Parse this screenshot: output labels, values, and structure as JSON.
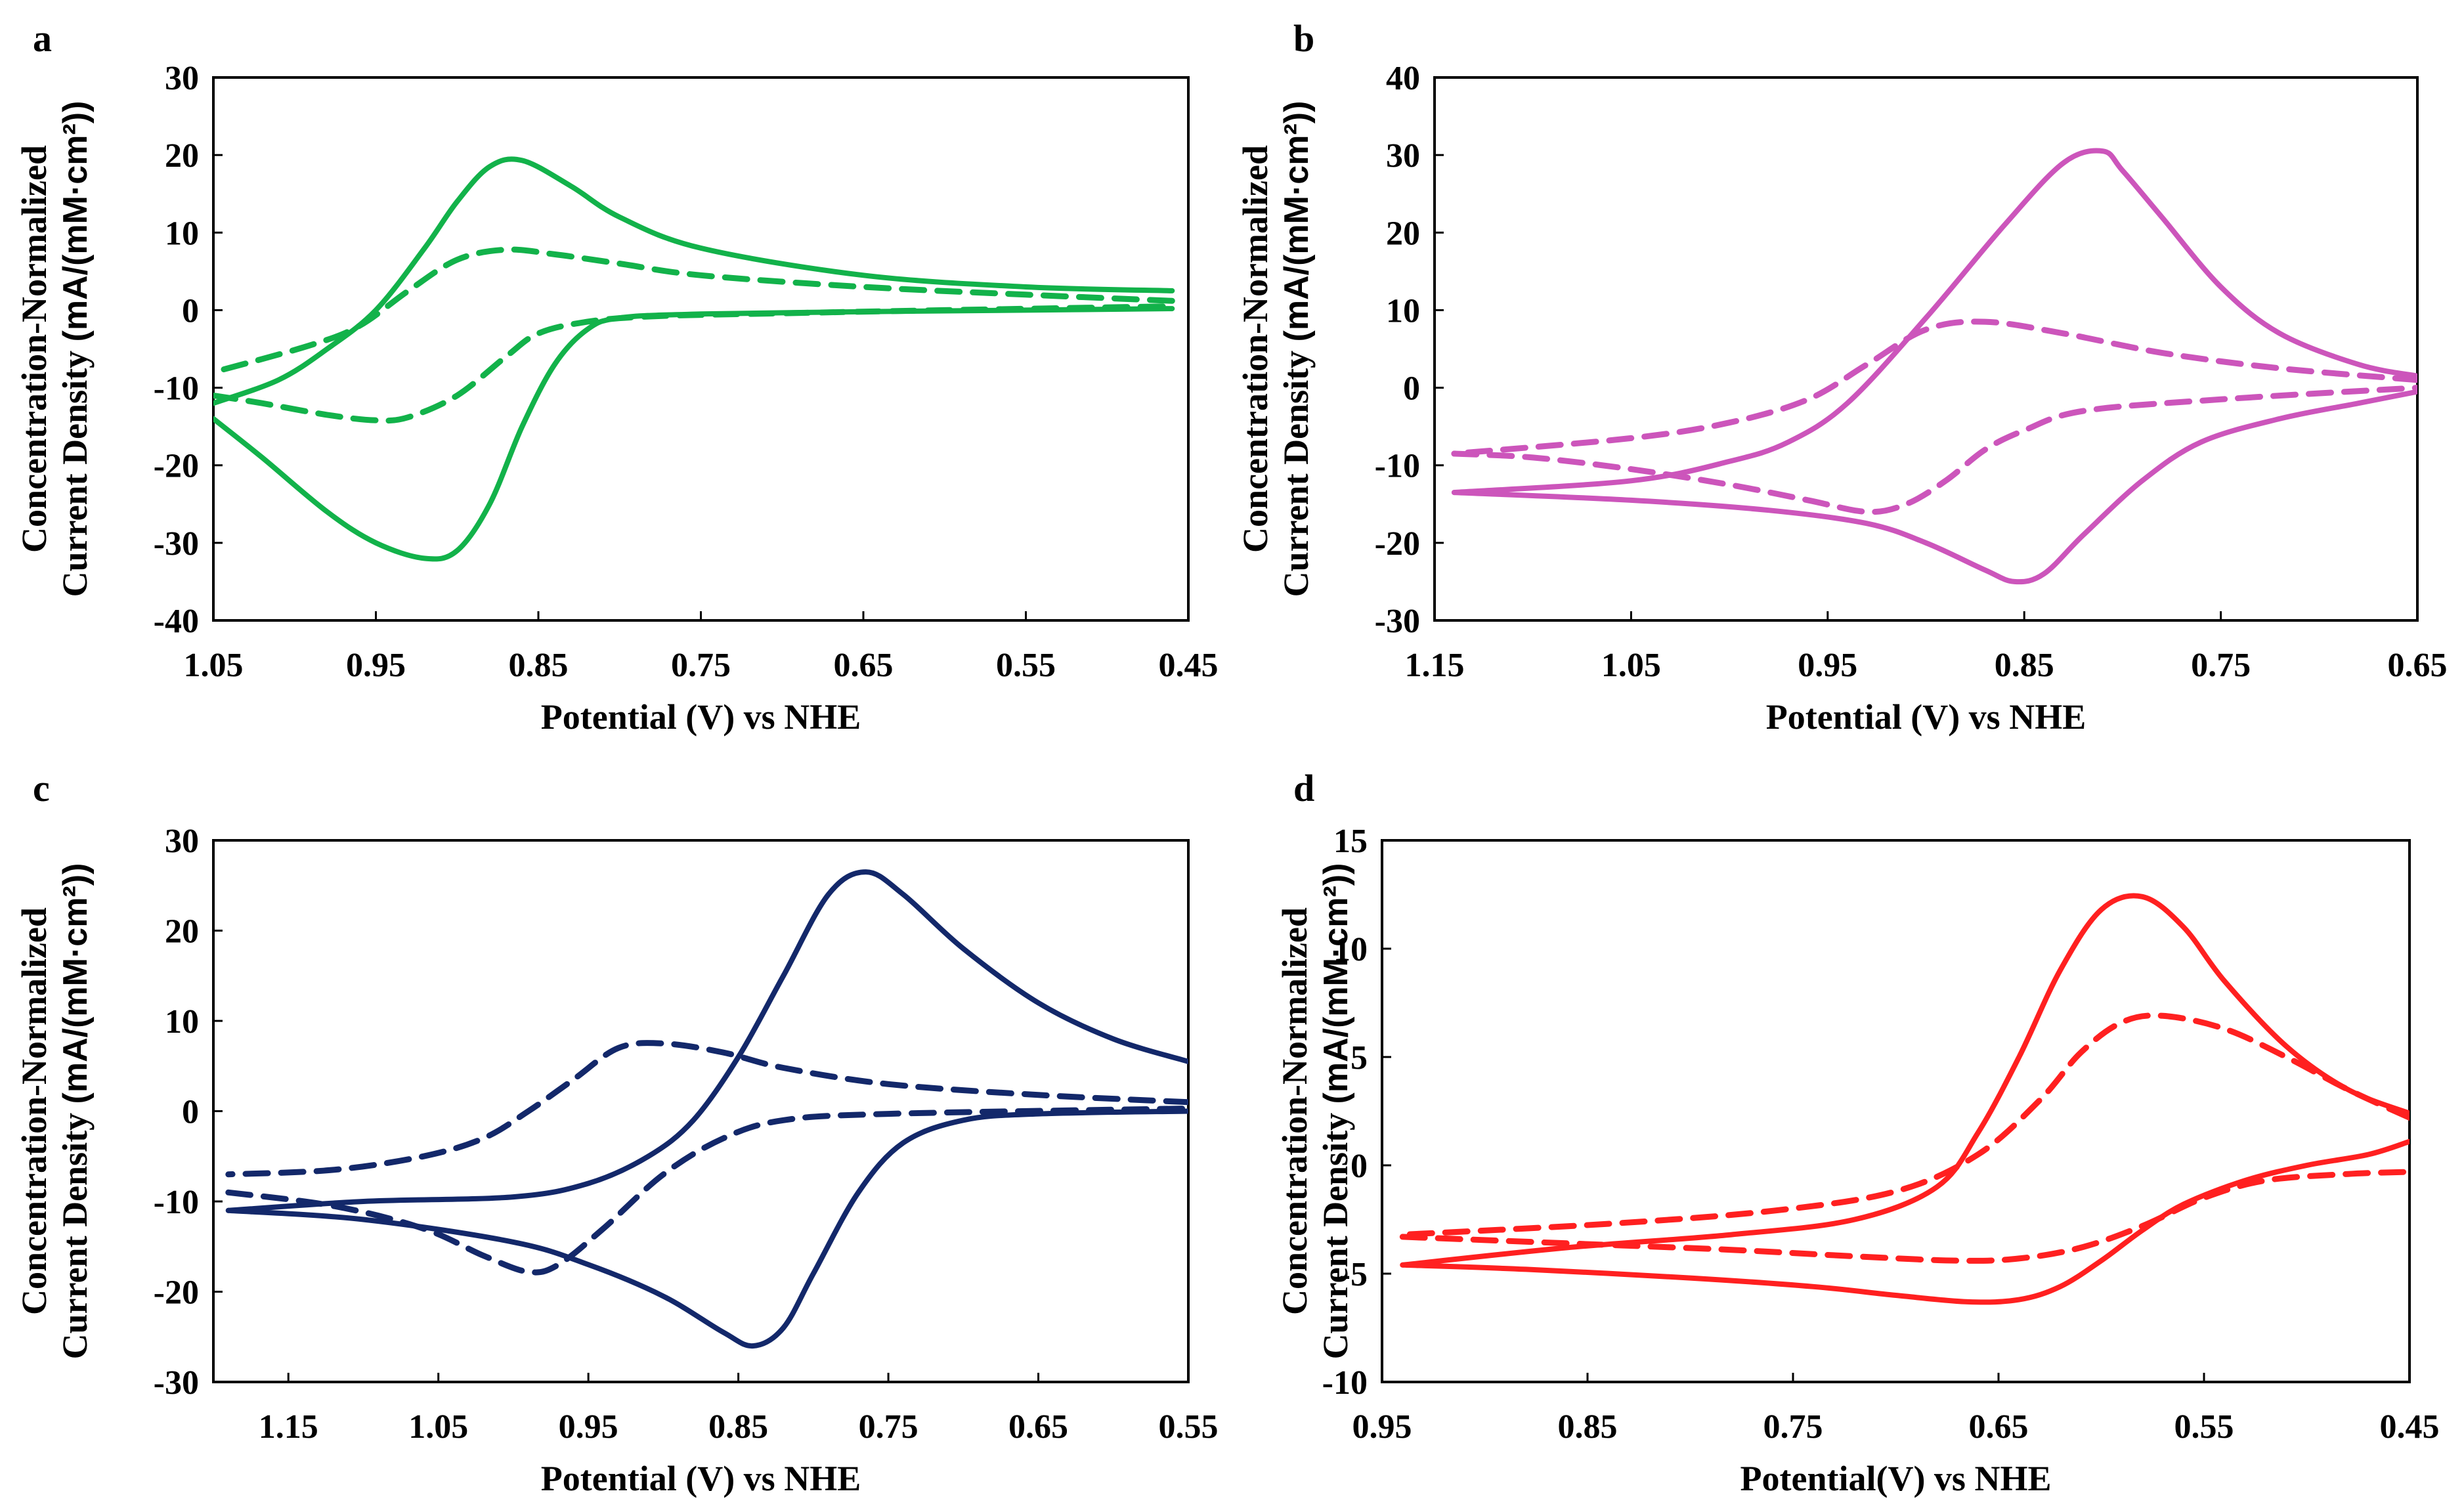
{
  "chart_data": [
    {
      "panel": "a",
      "type": "line",
      "color": "#12b24a",
      "title": "",
      "xlabel": "Potential (V) vs NHE",
      "ylabel_line1": "Concentration-Normalized",
      "ylabel_line2_a": "Current Density ",
      "ylabel_line2_b": "(mA/(mM·cm²))",
      "xlim": [
        1.05,
        0.45
      ],
      "ylim": [
        -40,
        30
      ],
      "xticks": [
        "1.05",
        "0.95",
        "0.85",
        "0.75",
        "0.65",
        "0.55",
        "0.45"
      ],
      "yticks": [
        "-40",
        "-30",
        "-20",
        "-10",
        "0",
        "10",
        "20",
        "30"
      ],
      "series": [
        {
          "name": "solid-forward",
          "style": "solid",
          "points": [
            [
              1.05,
              -14
            ],
            [
              1.02,
              -19
            ],
            [
              0.98,
              -26
            ],
            [
              0.95,
              -30
            ],
            [
              0.92,
              -32
            ],
            [
              0.9,
              -31
            ],
            [
              0.88,
              -25
            ],
            [
              0.86,
              -15
            ],
            [
              0.84,
              -7
            ],
            [
              0.82,
              -2.5
            ],
            [
              0.8,
              -1
            ],
            [
              0.75,
              -0.5
            ],
            [
              0.65,
              -0.2
            ],
            [
              0.55,
              0
            ],
            [
              0.46,
              0.2
            ]
          ]
        },
        {
          "name": "solid-reverse",
          "style": "solid",
          "points": [
            [
              0.46,
              2.5
            ],
            [
              0.55,
              3
            ],
            [
              0.65,
              4.5
            ],
            [
              0.75,
              8
            ],
            [
              0.8,
              12
            ],
            [
              0.83,
              16
            ],
            [
              0.86,
              19.3
            ],
            [
              0.88,
              18.5
            ],
            [
              0.9,
              14
            ],
            [
              0.92,
              8
            ],
            [
              0.95,
              0
            ],
            [
              0.98,
              -5
            ],
            [
              1.01,
              -9
            ],
            [
              1.05,
              -12
            ]
          ]
        },
        {
          "name": "dashed-forward",
          "style": "dashed",
          "points": [
            [
              1.05,
              -11
            ],
            [
              1.02,
              -12
            ],
            [
              0.98,
              -13.5
            ],
            [
              0.95,
              -14.2
            ],
            [
              0.93,
              -13.8
            ],
            [
              0.9,
              -11
            ],
            [
              0.87,
              -6
            ],
            [
              0.85,
              -3
            ],
            [
              0.82,
              -1.5
            ],
            [
              0.78,
              -0.8
            ],
            [
              0.7,
              -0.4
            ],
            [
              0.6,
              0
            ],
            [
              0.46,
              0.5
            ]
          ]
        },
        {
          "name": "dashed-reverse",
          "style": "dashed",
          "points": [
            [
              0.46,
              1.2
            ],
            [
              0.55,
              2
            ],
            [
              0.65,
              3
            ],
            [
              0.75,
              4.5
            ],
            [
              0.8,
              6
            ],
            [
              0.84,
              7.2
            ],
            [
              0.87,
              7.8
            ],
            [
              0.9,
              6.5
            ],
            [
              0.93,
              2.5
            ],
            [
              0.96,
              -2
            ],
            [
              0.99,
              -4.5
            ],
            [
              1.05,
              -8
            ]
          ]
        }
      ]
    },
    {
      "panel": "b",
      "type": "line",
      "color": "#cc55bb",
      "title": "",
      "xlabel": "Potential (V) vs NHE",
      "ylabel_line1": "Concentration-Normalized",
      "ylabel_line2_a": "Current Density ",
      "ylabel_line2_b": "(mA/(mM·cm²))",
      "xlim": [
        1.15,
        0.65
      ],
      "ylim": [
        -30,
        40
      ],
      "xticks": [
        "1.15",
        "1.05",
        "0.95",
        "0.85",
        "0.75",
        "0.65"
      ],
      "yticks": [
        "-30",
        "-20",
        "-10",
        "0",
        "10",
        "20",
        "30",
        "40"
      ],
      "series": [
        {
          "name": "solid-forward",
          "style": "solid",
          "points": [
            [
              1.14,
              -13.5
            ],
            [
              1.05,
              -14.5
            ],
            [
              0.98,
              -15.8
            ],
            [
              0.93,
              -17.5
            ],
            [
              0.9,
              -20
            ],
            [
              0.87,
              -23.5
            ],
            [
              0.855,
              -25
            ],
            [
              0.84,
              -24
            ],
            [
              0.82,
              -19
            ],
            [
              0.79,
              -12
            ],
            [
              0.76,
              -7
            ],
            [
              0.72,
              -4
            ],
            [
              0.68,
              -2
            ],
            [
              0.65,
              -0.5
            ]
          ]
        },
        {
          "name": "solid-reverse",
          "style": "solid",
          "points": [
            [
              0.65,
              1.5
            ],
            [
              0.68,
              3
            ],
            [
              0.72,
              7
            ],
            [
              0.75,
              13
            ],
            [
              0.78,
              22
            ],
            [
              0.8,
              28
            ],
            [
              0.81,
              30.5
            ],
            [
              0.83,
              29
            ],
            [
              0.86,
              21
            ],
            [
              0.9,
              9
            ],
            [
              0.94,
              -2
            ],
            [
              0.97,
              -7
            ],
            [
              1.0,
              -9.5
            ],
            [
              1.05,
              -12
            ],
            [
              1.14,
              -13.5
            ]
          ]
        },
        {
          "name": "dashed-forward",
          "style": "dashed",
          "points": [
            [
              1.14,
              -8.5
            ],
            [
              1.1,
              -9
            ],
            [
              1.05,
              -10.5
            ],
            [
              1.0,
              -12.5
            ],
            [
              0.96,
              -14.5
            ],
            [
              0.93,
              -16
            ],
            [
              0.91,
              -15
            ],
            [
              0.89,
              -12
            ],
            [
              0.87,
              -8
            ],
            [
              0.85,
              -5.5
            ],
            [
              0.82,
              -3
            ],
            [
              0.75,
              -1.5
            ],
            [
              0.65,
              0
            ]
          ]
        },
        {
          "name": "dashed-reverse",
          "style": "dashed",
          "points": [
            [
              0.65,
              1
            ],
            [
              0.72,
              2.5
            ],
            [
              0.78,
              4.5
            ],
            [
              0.83,
              7
            ],
            [
              0.87,
              8.5
            ],
            [
              0.9,
              7.5
            ],
            [
              0.93,
              3
            ],
            [
              0.96,
              -1.5
            ],
            [
              1.0,
              -4.5
            ],
            [
              1.05,
              -6.5
            ],
            [
              1.14,
              -8.5
            ]
          ]
        }
      ]
    },
    {
      "panel": "c",
      "type": "line",
      "color": "#13286a",
      "title": "",
      "xlabel": "Potential (V) vs NHE",
      "ylabel_line1": "Concentration-Normalized",
      "ylabel_line2_a": "Current Density ",
      "ylabel_line2_b": "(mA/(mM·cm²))",
      "xlim": [
        1.2,
        0.55
      ],
      "ylim": [
        -30,
        30
      ],
      "xticks": [
        "1.15",
        "1.05",
        "0.95",
        "0.85",
        "0.75",
        "0.65",
        "0.55"
      ],
      "yticks": [
        "-30",
        "-20",
        "-10",
        "0",
        "10",
        "20",
        "30"
      ],
      "series": [
        {
          "name": "solid-forward",
          "style": "solid",
          "points": [
            [
              1.19,
              -11
            ],
            [
              1.1,
              -12
            ],
            [
              1.0,
              -14.5
            ],
            [
              0.95,
              -17
            ],
            [
              0.9,
              -20.5
            ],
            [
              0.86,
              -24.5
            ],
            [
              0.84,
              -26
            ],
            [
              0.82,
              -24
            ],
            [
              0.8,
              -18
            ],
            [
              0.77,
              -9
            ],
            [
              0.74,
              -3.5
            ],
            [
              0.7,
              -1
            ],
            [
              0.65,
              -0.3
            ],
            [
              0.55,
              0
            ]
          ]
        },
        {
          "name": "solid-reverse",
          "style": "solid",
          "points": [
            [
              0.55,
              5.5
            ],
            [
              0.6,
              8
            ],
            [
              0.65,
              12
            ],
            [
              0.7,
              18
            ],
            [
              0.74,
              24
            ],
            [
              0.765,
              26.5
            ],
            [
              0.79,
              24
            ],
            [
              0.82,
              15
            ],
            [
              0.85,
              6
            ],
            [
              0.88,
              -1
            ],
            [
              0.91,
              -5
            ],
            [
              0.95,
              -8
            ],
            [
              1.0,
              -9.5
            ],
            [
              1.1,
              -10
            ],
            [
              1.19,
              -11
            ]
          ]
        },
        {
          "name": "dashed-forward",
          "style": "dashed",
          "points": [
            [
              1.19,
              -9
            ],
            [
              1.12,
              -10.5
            ],
            [
              1.06,
              -13
            ],
            [
              1.02,
              -16
            ],
            [
              0.99,
              -17.8
            ],
            [
              0.97,
              -17
            ],
            [
              0.94,
              -13
            ],
            [
              0.9,
              -7
            ],
            [
              0.86,
              -3
            ],
            [
              0.82,
              -1
            ],
            [
              0.75,
              -0.3
            ],
            [
              0.55,
              0.3
            ]
          ]
        },
        {
          "name": "dashed-reverse",
          "style": "dashed",
          "points": [
            [
              0.55,
              1
            ],
            [
              0.65,
              1.8
            ],
            [
              0.75,
              3
            ],
            [
              0.82,
              4.8
            ],
            [
              0.86,
              6.5
            ],
            [
              0.9,
              7.5
            ],
            [
              0.93,
              7
            ],
            [
              0.96,
              3.5
            ],
            [
              0.99,
              0
            ],
            [
              1.02,
              -3
            ],
            [
              1.06,
              -5
            ],
            [
              1.12,
              -6.5
            ],
            [
              1.19,
              -7
            ]
          ]
        }
      ]
    },
    {
      "panel": "d",
      "type": "line",
      "color": "#ff2020",
      "title": "",
      "xlabel": "Potential(V) vs NHE",
      "ylabel_line1": "Concentration-Normalized",
      "ylabel_line2_a": "Current Density ",
      "ylabel_line2_b": "(mA/(mM·cm²))",
      "xlim": [
        0.95,
        0.45
      ],
      "ylim": [
        -10,
        15
      ],
      "xticks": [
        "0.95",
        "0.85",
        "0.75",
        "0.65",
        "0.55",
        "0.45"
      ],
      "yticks": [
        "-10",
        "-5",
        "0",
        "5",
        "10",
        "15"
      ],
      "series": [
        {
          "name": "solid-forward",
          "style": "solid",
          "points": [
            [
              0.94,
              -4.6
            ],
            [
              0.88,
              -4.8
            ],
            [
              0.8,
              -5.2
            ],
            [
              0.74,
              -5.6
            ],
            [
              0.7,
              -6
            ],
            [
              0.665,
              -6.3
            ],
            [
              0.64,
              -6.2
            ],
            [
              0.62,
              -5.6
            ],
            [
              0.6,
              -4.4
            ],
            [
              0.58,
              -3
            ],
            [
              0.56,
              -1.8
            ],
            [
              0.53,
              -0.7
            ],
            [
              0.5,
              0
            ],
            [
              0.47,
              0.5
            ],
            [
              0.45,
              1.1
            ]
          ]
        },
        {
          "name": "solid-reverse",
          "style": "solid",
          "points": [
            [
              0.45,
              2.4
            ],
            [
              0.48,
              3.5
            ],
            [
              0.51,
              5.5
            ],
            [
              0.54,
              8.5
            ],
            [
              0.56,
              11
            ],
            [
              0.58,
              12.4
            ],
            [
              0.6,
              11.8
            ],
            [
              0.62,
              9
            ],
            [
              0.64,
              5
            ],
            [
              0.66,
              1.5
            ],
            [
              0.68,
              -1
            ],
            [
              0.72,
              -2.5
            ],
            [
              0.78,
              -3.2
            ],
            [
              0.86,
              -3.8
            ],
            [
              0.94,
              -4.6
            ]
          ]
        },
        {
          "name": "dashed-forward",
          "style": "dashed",
          "points": [
            [
              0.94,
              -3.3
            ],
            [
              0.86,
              -3.6
            ],
            [
              0.78,
              -3.9
            ],
            [
              0.72,
              -4.2
            ],
            [
              0.67,
              -4.4
            ],
            [
              0.64,
              -4.3
            ],
            [
              0.61,
              -3.8
            ],
            [
              0.58,
              -2.8
            ],
            [
              0.55,
              -1.5
            ],
            [
              0.52,
              -0.7
            ],
            [
              0.48,
              -0.4
            ],
            [
              0.45,
              -0.3
            ]
          ]
        },
        {
          "name": "dashed-reverse",
          "style": "dashed",
          "points": [
            [
              0.45,
              2.2
            ],
            [
              0.48,
              3.5
            ],
            [
              0.51,
              5
            ],
            [
              0.54,
              6.3
            ],
            [
              0.57,
              6.9
            ],
            [
              0.59,
              6.6
            ],
            [
              0.61,
              5.2
            ],
            [
              0.63,
              3
            ],
            [
              0.66,
              0.5
            ],
            [
              0.7,
              -1.2
            ],
            [
              0.76,
              -2.1
            ],
            [
              0.84,
              -2.7
            ],
            [
              0.94,
              -3.2
            ]
          ]
        }
      ]
    }
  ]
}
